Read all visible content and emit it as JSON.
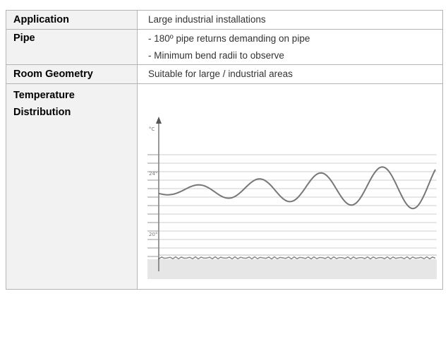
{
  "rows": [
    {
      "label": "Application",
      "values": [
        "Large industrial installations"
      ]
    },
    {
      "label": "Pipe",
      "values": [
        "- 180º pipe returns demanding on pipe",
        "- Minimum bend radii to observe"
      ]
    },
    {
      "label": "Room Geometry",
      "values": [
        "Suitable for large / industrial areas"
      ]
    },
    {
      "label_lines": [
        "Temperature",
        "Distribution"
      ]
    }
  ],
  "chart": {
    "y_unit": "°C",
    "y_ticks": [
      "24°",
      "20°"
    ],
    "colors": {
      "curve": "#777777",
      "grid": "#c8c8c8",
      "axis": "#555555",
      "base": "#e6e6e6"
    }
  }
}
